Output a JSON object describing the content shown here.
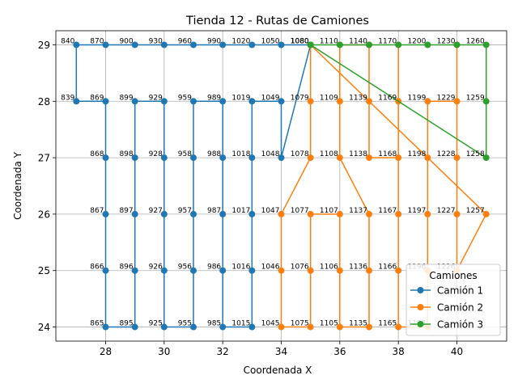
{
  "chart_data": {
    "type": "line",
    "title": "Tienda 12 - Rutas de Camiones",
    "xlabel": "Coordenada X",
    "ylabel": "Coordenada Y",
    "xlim": [
      26.3,
      41.7
    ],
    "ylim": [
      23.75,
      29.25
    ],
    "x_ticks": [
      28,
      30,
      32,
      34,
      36,
      38,
      40
    ],
    "y_ticks": [
      24,
      25,
      26,
      27,
      28,
      29
    ],
    "grid": true,
    "legend": {
      "title": "Camiones",
      "placement": "lower-right"
    },
    "series": [
      {
        "name": "Camión 1",
        "color": "#1f77b4",
        "points": [
          [
            35,
            29
          ],
          [
            34,
            29
          ],
          [
            33,
            29
          ],
          [
            32,
            29
          ],
          [
            31,
            29
          ],
          [
            30,
            29
          ],
          [
            29,
            29
          ],
          [
            28,
            29
          ],
          [
            27,
            29
          ],
          [
            27,
            28
          ],
          [
            28,
            28
          ],
          [
            28,
            27
          ],
          [
            28,
            26
          ],
          [
            28,
            25
          ],
          [
            28,
            24
          ],
          [
            29,
            24
          ],
          [
            29,
            25
          ],
          [
            29,
            26
          ],
          [
            29,
            27
          ],
          [
            29,
            28
          ],
          [
            30,
            28
          ],
          [
            30,
            27
          ],
          [
            30,
            26
          ],
          [
            30,
            25
          ],
          [
            30,
            24
          ],
          [
            31,
            24
          ],
          [
            31,
            25
          ],
          [
            31,
            26
          ],
          [
            31,
            27
          ],
          [
            31,
            28
          ],
          [
            32,
            28
          ],
          [
            32,
            27
          ],
          [
            32,
            26
          ],
          [
            32,
            25
          ],
          [
            32,
            24
          ],
          [
            33,
            24
          ],
          [
            33,
            25
          ],
          [
            33,
            26
          ],
          [
            33,
            27
          ],
          [
            33,
            28
          ],
          [
            34,
            28
          ],
          [
            34,
            27
          ],
          [
            35,
            29
          ]
        ]
      },
      {
        "name": "Camión 2",
        "color": "#ff7f0e",
        "points": [
          [
            35,
            29
          ],
          [
            35,
            28
          ],
          [
            35,
            27
          ],
          [
            34,
            26
          ],
          [
            34,
            25
          ],
          [
            34,
            24
          ],
          [
            35,
            24
          ],
          [
            35,
            25
          ],
          [
            35,
            26
          ],
          [
            36,
            26
          ],
          [
            36,
            25
          ],
          [
            36,
            24
          ],
          [
            37,
            24
          ],
          [
            37,
            25
          ],
          [
            37,
            26
          ],
          [
            36,
            27
          ],
          [
            36,
            28
          ],
          [
            36,
            29
          ],
          [
            37,
            29
          ],
          [
            37,
            28
          ],
          [
            37,
            27
          ],
          [
            38,
            27
          ],
          [
            38,
            28
          ],
          [
            38,
            29
          ],
          [
            38,
            26
          ],
          [
            38,
            25
          ],
          [
            38,
            24
          ],
          [
            39,
            24
          ],
          [
            39,
            25
          ],
          [
            39,
            26
          ],
          [
            39,
            27
          ],
          [
            39,
            28
          ],
          [
            40,
            28
          ],
          [
            40,
            29
          ],
          [
            40,
            27
          ],
          [
            40,
            26
          ],
          [
            40,
            25
          ],
          [
            41,
            26
          ],
          [
            35,
            29
          ]
        ]
      },
      {
        "name": "Camión 3",
        "color": "#2ca02c",
        "points": [
          [
            35,
            29
          ],
          [
            36,
            29
          ],
          [
            37,
            29
          ],
          [
            38,
            29
          ],
          [
            39,
            29
          ],
          [
            40,
            29
          ],
          [
            41,
            29
          ],
          [
            41,
            28
          ],
          [
            41,
            27
          ],
          [
            35,
            29
          ]
        ]
      }
    ],
    "annotations": [
      {
        "x": 27,
        "y": 29,
        "text": "840"
      },
      {
        "x": 28,
        "y": 29,
        "text": "870"
      },
      {
        "x": 29,
        "y": 29,
        "text": "900"
      },
      {
        "x": 30,
        "y": 29,
        "text": "930"
      },
      {
        "x": 31,
        "y": 29,
        "text": "960"
      },
      {
        "x": 32,
        "y": 29,
        "text": "990"
      },
      {
        "x": 33,
        "y": 29,
        "text": "1020"
      },
      {
        "x": 34,
        "y": 29,
        "text": "1050"
      },
      {
        "x": 35,
        "y": 29,
        "text": "1080"
      },
      {
        "x": 35,
        "y": 29,
        "text": "1080"
      },
      {
        "x": 35,
        "y": 29,
        "text": "1080"
      },
      {
        "x": 36,
        "y": 29,
        "text": "1110"
      },
      {
        "x": 37,
        "y": 29,
        "text": "1140"
      },
      {
        "x": 38,
        "y": 29,
        "text": "1170"
      },
      {
        "x": 39,
        "y": 29,
        "text": "1200"
      },
      {
        "x": 40,
        "y": 29,
        "text": "1230"
      },
      {
        "x": 41,
        "y": 29,
        "text": "1260"
      },
      {
        "x": 27,
        "y": 28,
        "text": "839"
      },
      {
        "x": 28,
        "y": 28,
        "text": "869"
      },
      {
        "x": 29,
        "y": 28,
        "text": "899"
      },
      {
        "x": 30,
        "y": 28,
        "text": "929"
      },
      {
        "x": 31,
        "y": 28,
        "text": "959"
      },
      {
        "x": 32,
        "y": 28,
        "text": "989"
      },
      {
        "x": 33,
        "y": 28,
        "text": "1019"
      },
      {
        "x": 34,
        "y": 28,
        "text": "1049"
      },
      {
        "x": 35,
        "y": 28,
        "text": "1079"
      },
      {
        "x": 36,
        "y": 28,
        "text": "1109"
      },
      {
        "x": 37,
        "y": 28,
        "text": "1139"
      },
      {
        "x": 38,
        "y": 28,
        "text": "1169"
      },
      {
        "x": 39,
        "y": 28,
        "text": "1199"
      },
      {
        "x": 40,
        "y": 28,
        "text": "1229"
      },
      {
        "x": 41,
        "y": 28,
        "text": "1259"
      },
      {
        "x": 28,
        "y": 27,
        "text": "868"
      },
      {
        "x": 29,
        "y": 27,
        "text": "898"
      },
      {
        "x": 30,
        "y": 27,
        "text": "928"
      },
      {
        "x": 31,
        "y": 27,
        "text": "958"
      },
      {
        "x": 32,
        "y": 27,
        "text": "988"
      },
      {
        "x": 33,
        "y": 27,
        "text": "1018"
      },
      {
        "x": 34,
        "y": 27,
        "text": "1048"
      },
      {
        "x": 35,
        "y": 27,
        "text": "1078"
      },
      {
        "x": 36,
        "y": 27,
        "text": "1108"
      },
      {
        "x": 37,
        "y": 27,
        "text": "1138"
      },
      {
        "x": 38,
        "y": 27,
        "text": "1168"
      },
      {
        "x": 39,
        "y": 27,
        "text": "1198"
      },
      {
        "x": 40,
        "y": 27,
        "text": "1228"
      },
      {
        "x": 41,
        "y": 27,
        "text": "1258"
      },
      {
        "x": 28,
        "y": 26,
        "text": "867"
      },
      {
        "x": 29,
        "y": 26,
        "text": "897"
      },
      {
        "x": 30,
        "y": 26,
        "text": "927"
      },
      {
        "x": 31,
        "y": 26,
        "text": "957"
      },
      {
        "x": 32,
        "y": 26,
        "text": "987"
      },
      {
        "x": 33,
        "y": 26,
        "text": "1017"
      },
      {
        "x": 34,
        "y": 26,
        "text": "1047"
      },
      {
        "x": 35,
        "y": 26,
        "text": "1077"
      },
      {
        "x": 36,
        "y": 26,
        "text": "1107"
      },
      {
        "x": 37,
        "y": 26,
        "text": "1137"
      },
      {
        "x": 38,
        "y": 26,
        "text": "1167"
      },
      {
        "x": 39,
        "y": 26,
        "text": "1197"
      },
      {
        "x": 40,
        "y": 26,
        "text": "1227"
      },
      {
        "x": 41,
        "y": 26,
        "text": "1257"
      },
      {
        "x": 28,
        "y": 25,
        "text": "866"
      },
      {
        "x": 29,
        "y": 25,
        "text": "896"
      },
      {
        "x": 30,
        "y": 25,
        "text": "926"
      },
      {
        "x": 31,
        "y": 25,
        "text": "956"
      },
      {
        "x": 32,
        "y": 25,
        "text": "986"
      },
      {
        "x": 33,
        "y": 25,
        "text": "1016"
      },
      {
        "x": 34,
        "y": 25,
        "text": "1046"
      },
      {
        "x": 35,
        "y": 25,
        "text": "1076"
      },
      {
        "x": 36,
        "y": 25,
        "text": "1106"
      },
      {
        "x": 37,
        "y": 25,
        "text": "1136"
      },
      {
        "x": 38,
        "y": 25,
        "text": "1166"
      },
      {
        "x": 39,
        "y": 25,
        "text": "1196"
      },
      {
        "x": 40,
        "y": 25,
        "text": "1226"
      },
      {
        "x": 28,
        "y": 24,
        "text": "865"
      },
      {
        "x": 29,
        "y": 24,
        "text": "895"
      },
      {
        "x": 30,
        "y": 24,
        "text": "925"
      },
      {
        "x": 31,
        "y": 24,
        "text": "955"
      },
      {
        "x": 32,
        "y": 24,
        "text": "985"
      },
      {
        "x": 33,
        "y": 24,
        "text": "1015"
      },
      {
        "x": 34,
        "y": 24,
        "text": "1045"
      },
      {
        "x": 35,
        "y": 24,
        "text": "1075"
      },
      {
        "x": 36,
        "y": 24,
        "text": "1105"
      },
      {
        "x": 37,
        "y": 24,
        "text": "1135"
      },
      {
        "x": 38,
        "y": 24,
        "text": "1165"
      },
      {
        "x": 39,
        "y": 24,
        "text": "1195"
      }
    ]
  }
}
